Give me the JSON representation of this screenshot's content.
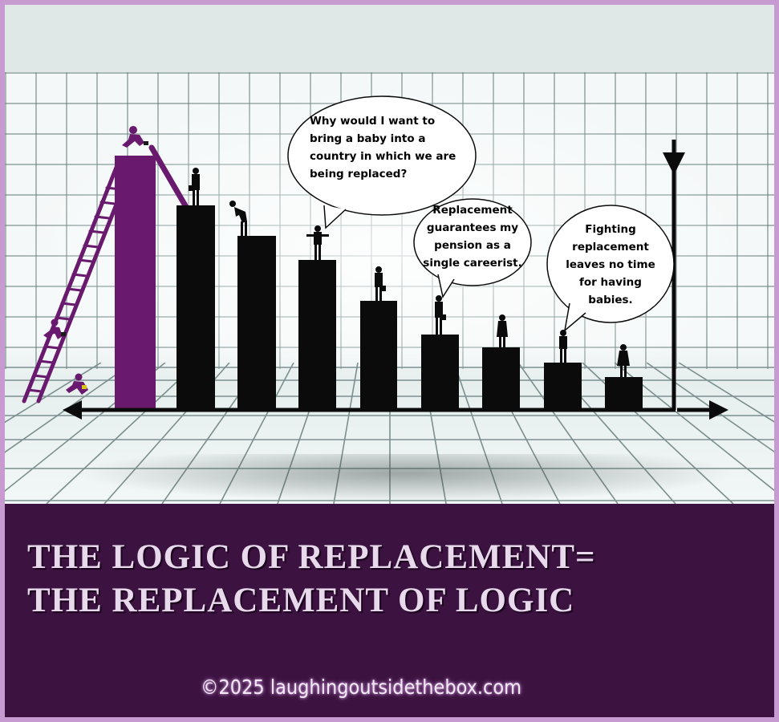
{
  "headline": {
    "line1": "THE LOGIC OF REPLACEMENT=",
    "line2": "THE REPLACEMENT OF LOGIC"
  },
  "copyright": "©2025 laughingoutsidethebox.com",
  "bubbles": {
    "baby": "Why would I want to\nbring a baby into a\ncountry in which we are\nbeing replaced?",
    "pension": "Replacement\nguarantees my\npension as a\nsingle careerist.",
    "fighting": "Fighting\nreplacement\nleaves no time\nfor having\nbabies."
  },
  "colors": {
    "purple": "#6a1a6e",
    "dark_panel": "#3c1340",
    "border": "#c79bd2",
    "bar": "#0b0b0b"
  },
  "icons": {
    "ladder": "ladder-icon",
    "climber": "climbing-person-icon",
    "person": "person-silhouette-icon",
    "arrow_down": "arrow-down-icon",
    "arrow_left": "arrow-left-icon",
    "arrow_right": "arrow-right-icon"
  }
}
